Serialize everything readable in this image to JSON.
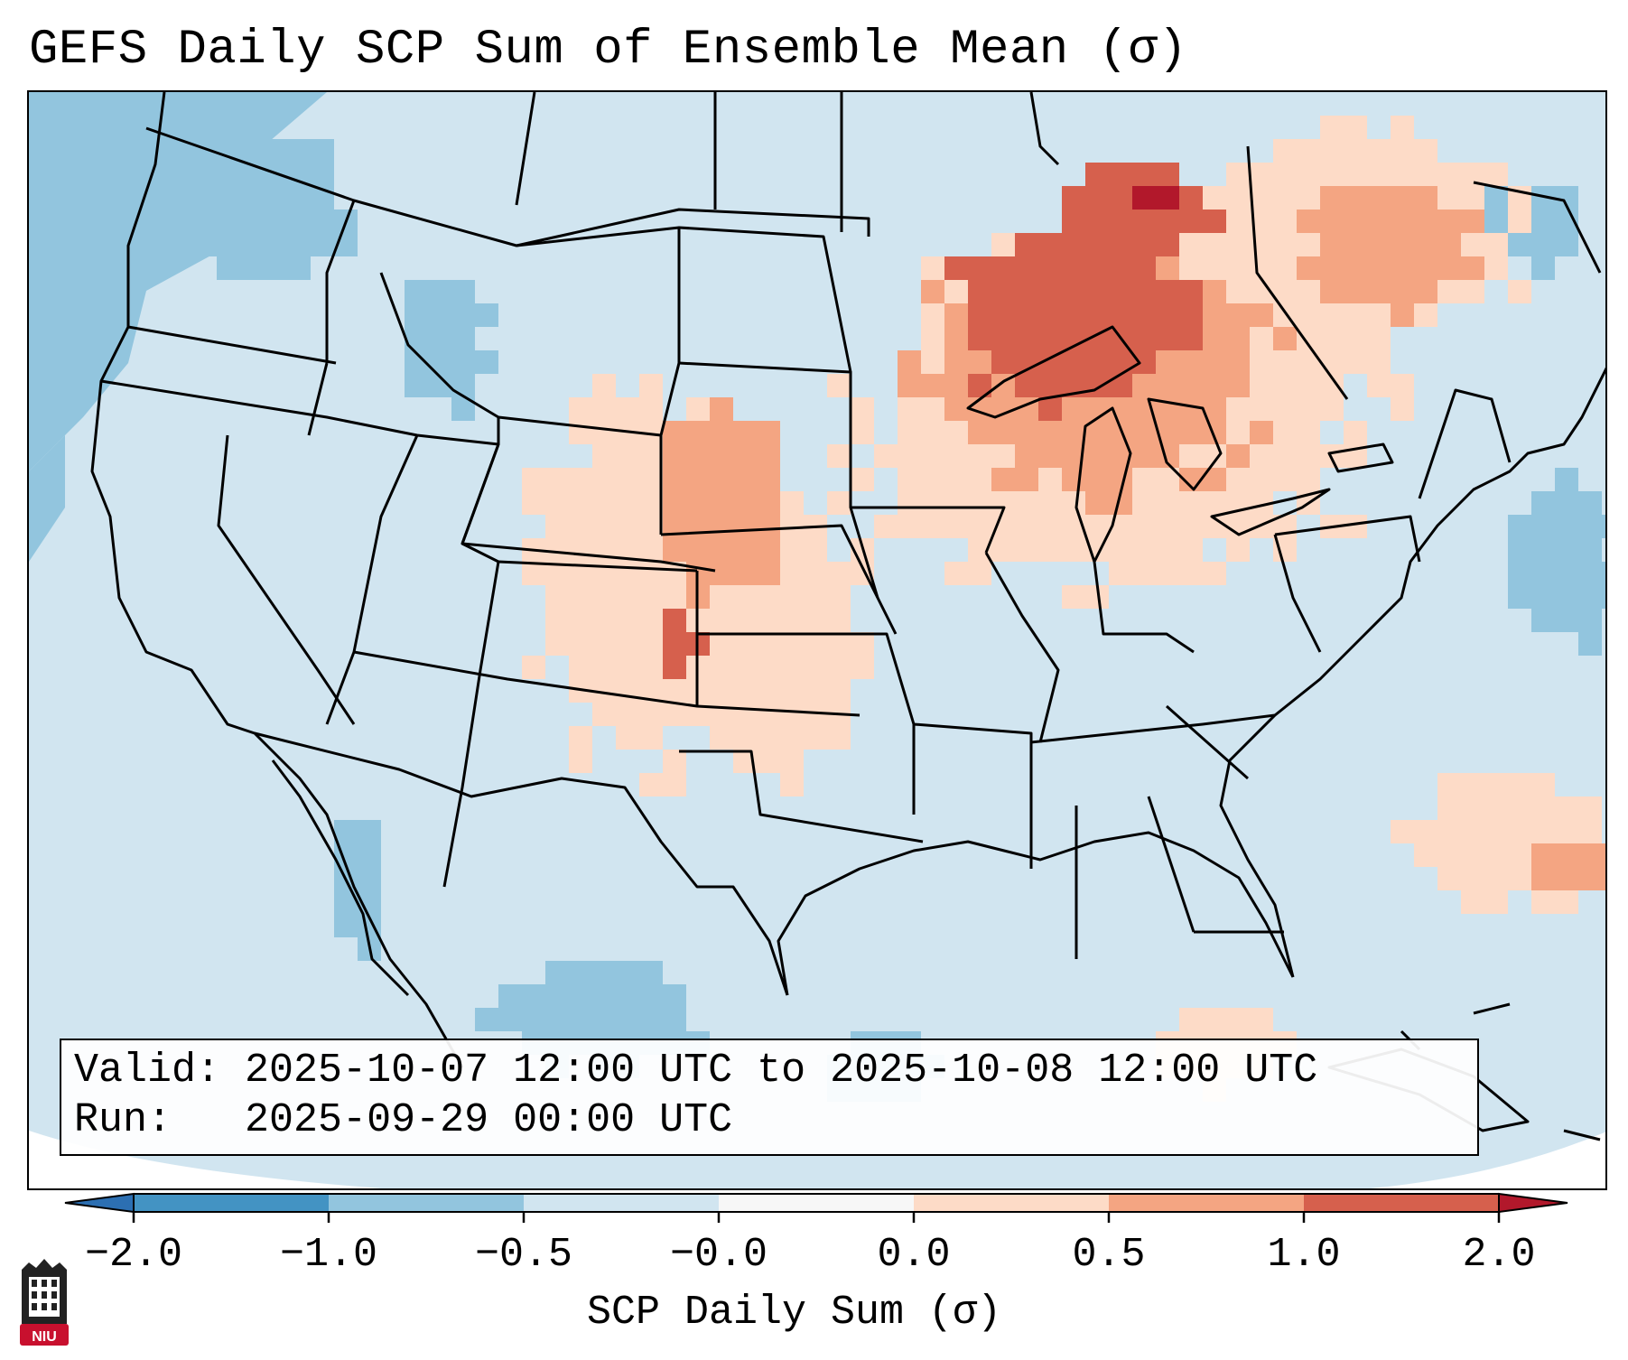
{
  "title": "GEFS Daily SCP Sum of Ensemble Mean (σ)",
  "info": {
    "valid_label": "Valid:",
    "valid_value": "2025-10-07 12:00 UTC to 2025-10-08 12:00 UTC",
    "run_label": "Run:",
    "run_value": "2025-09-29 00:00 UTC"
  },
  "colorbar": {
    "label": "SCP Daily Sum (σ)",
    "ticks": [
      "−2.0",
      "−1.0",
      "−0.5",
      "−0.0",
      "0.0",
      "0.5",
      "1.0",
      "2.0"
    ],
    "bins": [
      {
        "range": "< -2.0",
        "color": "#2c6fb2"
      },
      {
        "range": "-2.0 to -1.0",
        "color": "#4393c3"
      },
      {
        "range": "-1.0 to -0.5",
        "color": "#92c5de"
      },
      {
        "range": "-0.5 to -0.0",
        "color": "#d1e5f0"
      },
      {
        "range": "-0.0 to 0.0",
        "color": "#f7f7f7"
      },
      {
        "range": "0.0 to 0.5",
        "color": "#fddbc7"
      },
      {
        "range": "0.5 to 1.0",
        "color": "#f4a582"
      },
      {
        "range": "1.0 to 2.0",
        "color": "#d6604d"
      },
      {
        "range": "> 2.0",
        "color": "#b2182b"
      }
    ]
  },
  "logo": {
    "text": "NIU",
    "name": "Northern Illinois University"
  },
  "colors": {
    "ocean_outside": "#ffffff",
    "base_field": "#d1e5f0",
    "below_minus_half": "#92c5de",
    "above_zero": "#fddbc7",
    "above_half": "#f4a582",
    "above_one": "#d6604d",
    "above_two": "#b2182b"
  }
}
